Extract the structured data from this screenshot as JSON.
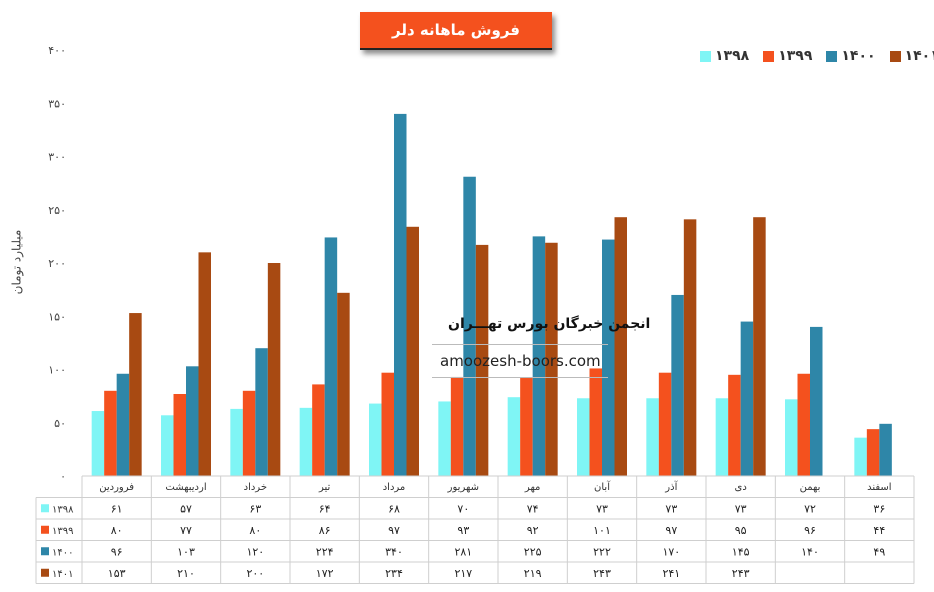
{
  "chart_data": {
    "type": "bar",
    "title": "فروش ماهانه دلر",
    "ylabel": "میلیارد تومان",
    "ylim": [
      0,
      400
    ],
    "yticks": [
      "۰",
      "۵۰",
      "۱۰۰",
      "۱۵۰",
      "۲۰۰",
      "۲۵۰",
      "۳۰۰",
      "۳۵۰",
      "۴۰۰"
    ],
    "legend_position": "top-right",
    "categories": [
      "فروردین",
      "اردیبهشت",
      "خرداد",
      "تیر",
      "مرداد",
      "شهریور",
      "مهر",
      "آبان",
      "آذر",
      "دی",
      "بهمن",
      "اسفند"
    ],
    "series": [
      {
        "name": "۱۳۹۸",
        "color": "#7ff5f5",
        "values": [
          61,
          57,
          63,
          64,
          68,
          70,
          74,
          73,
          73,
          73,
          72,
          36
        ],
        "labels": [
          "۶۱",
          "۵۷",
          "۶۳",
          "۶۴",
          "۶۸",
          "۷۰",
          "۷۴",
          "۷۳",
          "۷۳",
          "۷۳",
          "۷۲",
          "۳۶"
        ]
      },
      {
        "name": "۱۳۹۹",
        "color": "#f4511e",
        "values": [
          80,
          77,
          80,
          86,
          97,
          93,
          92,
          101,
          97,
          95,
          96,
          44
        ],
        "labels": [
          "۸۰",
          "۷۷",
          "۸۰",
          "۸۶",
          "۹۷",
          "۹۳",
          "۹۲",
          "۱۰۱",
          "۹۷",
          "۹۵",
          "۹۶",
          "۴۴"
        ]
      },
      {
        "name": "۱۴۰۰",
        "color": "#2e86a8",
        "values": [
          96,
          103,
          120,
          224,
          340,
          281,
          225,
          222,
          170,
          145,
          140,
          49
        ],
        "labels": [
          "۹۶",
          "۱۰۳",
          "۱۲۰",
          "۲۲۴",
          "۳۴۰",
          "۲۸۱",
          "۲۲۵",
          "۲۲۲",
          "۱۷۰",
          "۱۴۵",
          "۱۴۰",
          "۴۹"
        ]
      },
      {
        "name": "۱۴۰۱",
        "color": "#a84a12",
        "values": [
          153,
          210,
          200,
          172,
          234,
          217,
          219,
          243,
          241,
          243,
          null,
          null
        ],
        "labels": [
          "۱۵۳",
          "۲۱۰",
          "۲۰۰",
          "۱۷۲",
          "۲۳۴",
          "۲۱۷",
          "۲۱۹",
          "۲۴۳",
          "۲۴۱",
          "۲۴۳",
          "",
          ""
        ]
      }
    ]
  },
  "watermark": {
    "title": "انجمن خبرگان بورس تهـــران",
    "url": "amoozesh-boors.com"
  }
}
